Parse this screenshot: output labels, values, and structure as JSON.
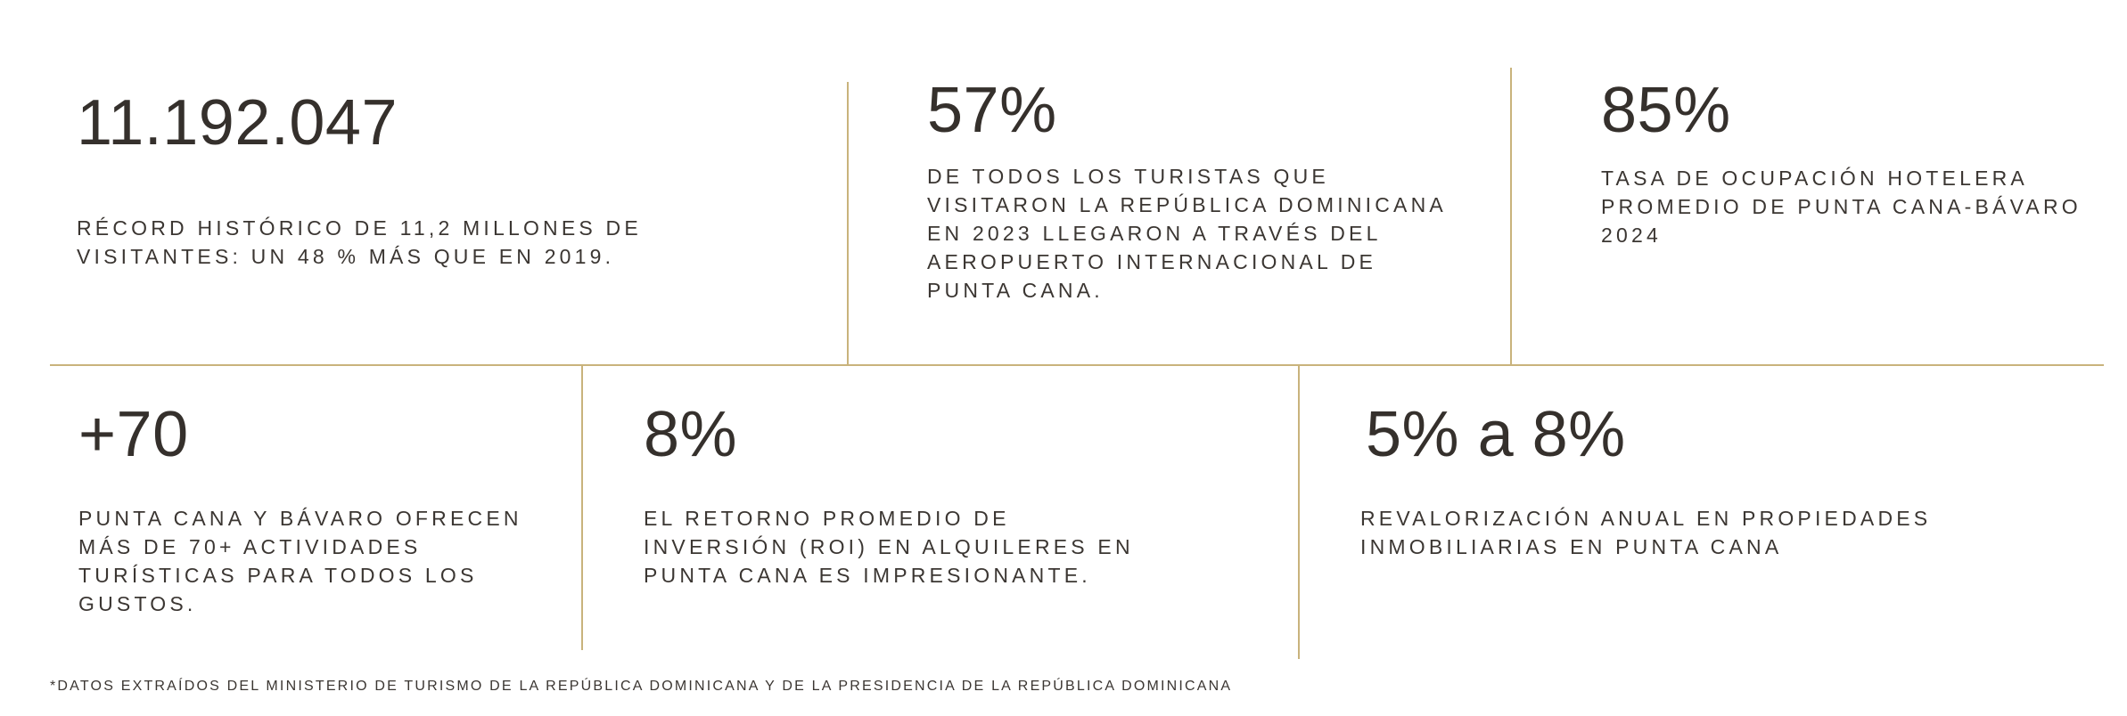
{
  "colors": {
    "divider": "#c9b37c",
    "text": "#35302c",
    "background": "#ffffff"
  },
  "stats": [
    {
      "value": "11.192.047",
      "description": "Récord histórico de 11,2 millones de visitantes: un 48 % más que en 2019."
    },
    {
      "value": "57%",
      "description": "De todos los turistas que visitaron la República Dominicana en 2023 llegaron a través del Aeropuerto Internacional de Punta Cana."
    },
    {
      "value": "85%",
      "description": "Tasa de ocupación hotelera promedio de Punta Cana-Bávaro 2024"
    },
    {
      "value": "+70",
      "description": "Punta Cana y Bávaro ofrecen más de 70+ actividades turísticas para todos los gustos."
    },
    {
      "value": "8%",
      "description": "El retorno promedio de inversión (ROI) en alquileres en Punta Cana es impresionante."
    },
    {
      "value": "5% a 8%",
      "description": "Revalorización anual  en propiedades inmobiliarias en Punta Cana"
    }
  ],
  "footnote": "*Datos extraídos del Ministerio de Turismo de la República Dominicana y de la Presidencia de la República Dominicana"
}
